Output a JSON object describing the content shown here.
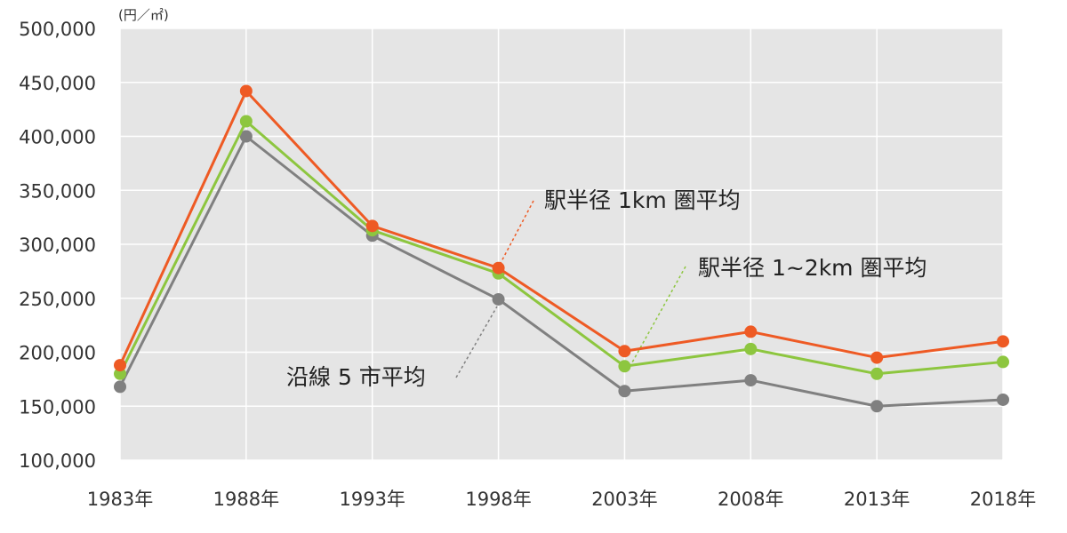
{
  "chart_data": {
    "type": "line",
    "ylabel": "(円／㎡)",
    "ylim": [
      100000,
      500000
    ],
    "yticks": [
      "500,000",
      "450,000",
      "400,000",
      "350,000",
      "300,000",
      "250,000",
      "200,000",
      "150,000",
      "100,000"
    ],
    "ytick_values": [
      500000,
      450000,
      400000,
      350000,
      300000,
      250000,
      200000,
      150000,
      100000
    ],
    "categories": [
      "1983年",
      "1988年",
      "1993年",
      "1998年",
      "2003年",
      "2008年",
      "2013年",
      "2018年"
    ],
    "grid": true,
    "background": "#e5e5e5",
    "series": [
      {
        "name": "駅半径 1km 圏平均",
        "color": "#ee5a24",
        "values": [
          188000,
          442000,
          317000,
          278000,
          201000,
          219000,
          195000,
          210000
        ]
      },
      {
        "name": "駅半径 1~2km 圏平均",
        "color": "#8dc63f",
        "values": [
          180000,
          414000,
          313000,
          273000,
          187000,
          203000,
          180000,
          191000
        ]
      },
      {
        "name": "沿線 5 市平均",
        "color": "#808080",
        "values": [
          168000,
          400000,
          308000,
          249000,
          164000,
          174000,
          150000,
          156000
        ]
      }
    ]
  }
}
